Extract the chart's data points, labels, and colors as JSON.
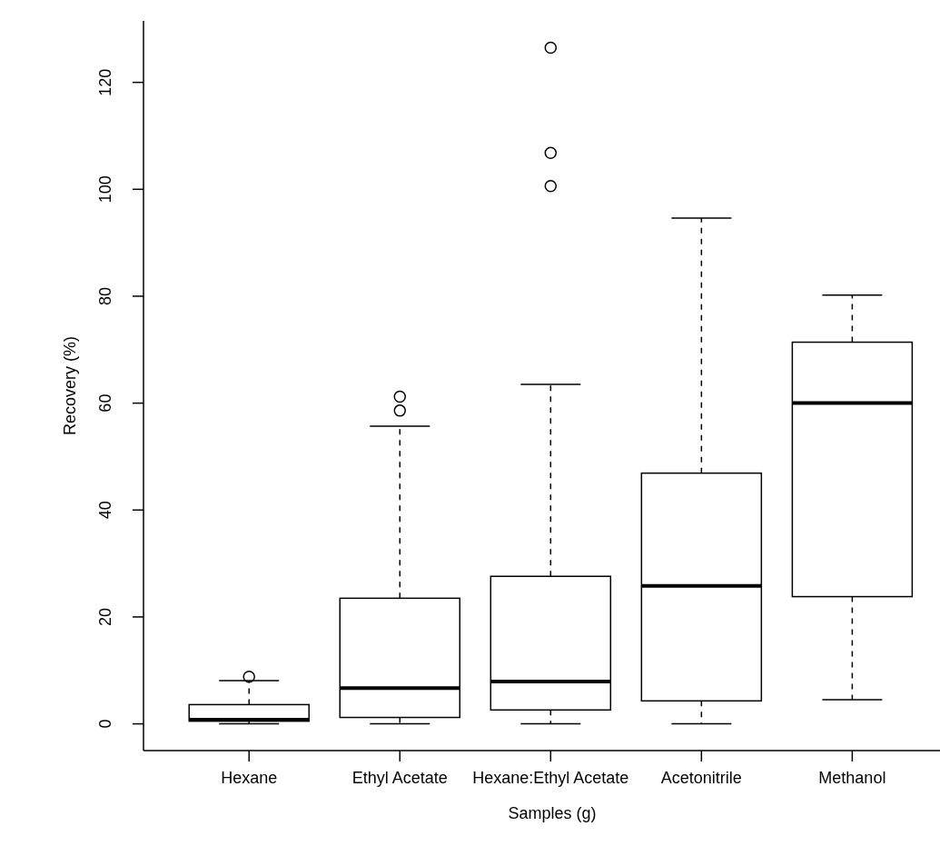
{
  "chart_data": {
    "type": "box",
    "xlabel": "Samples (g)",
    "ylabel": "Recovery (%)",
    "categories": [
      "Hexane",
      "Ethyl Acetate",
      "Hexane:Ethyl Acetate",
      "Acetonitrile",
      "Methanol"
    ],
    "boxes": [
      {
        "low": 0,
        "q1": 0.5,
        "median": 0.8,
        "q3": 3.6,
        "high": 8.1,
        "outliers": [
          8.8
        ]
      },
      {
        "low": 0,
        "q1": 1.2,
        "median": 6.7,
        "q3": 23.5,
        "high": 55.7,
        "outliers": [
          58.6,
          61.2
        ]
      },
      {
        "low": 0,
        "q1": 2.6,
        "median": 7.9,
        "q3": 27.6,
        "high": 63.5,
        "outliers": [
          100.6,
          106.8,
          126.5
        ]
      },
      {
        "low": 0,
        "q1": 4.3,
        "median": 25.8,
        "q3": 46.9,
        "high": 94.6
      },
      {
        "low": 4.5,
        "q1": 23.8,
        "median": 60.0,
        "q3": 71.4,
        "high": 80.2
      }
    ],
    "color": "#000000",
    "ylim": [
      -5,
      131.5
    ],
    "yticks": [
      0,
      20,
      40,
      60,
      80,
      100,
      120
    ],
    "grid": false
  }
}
